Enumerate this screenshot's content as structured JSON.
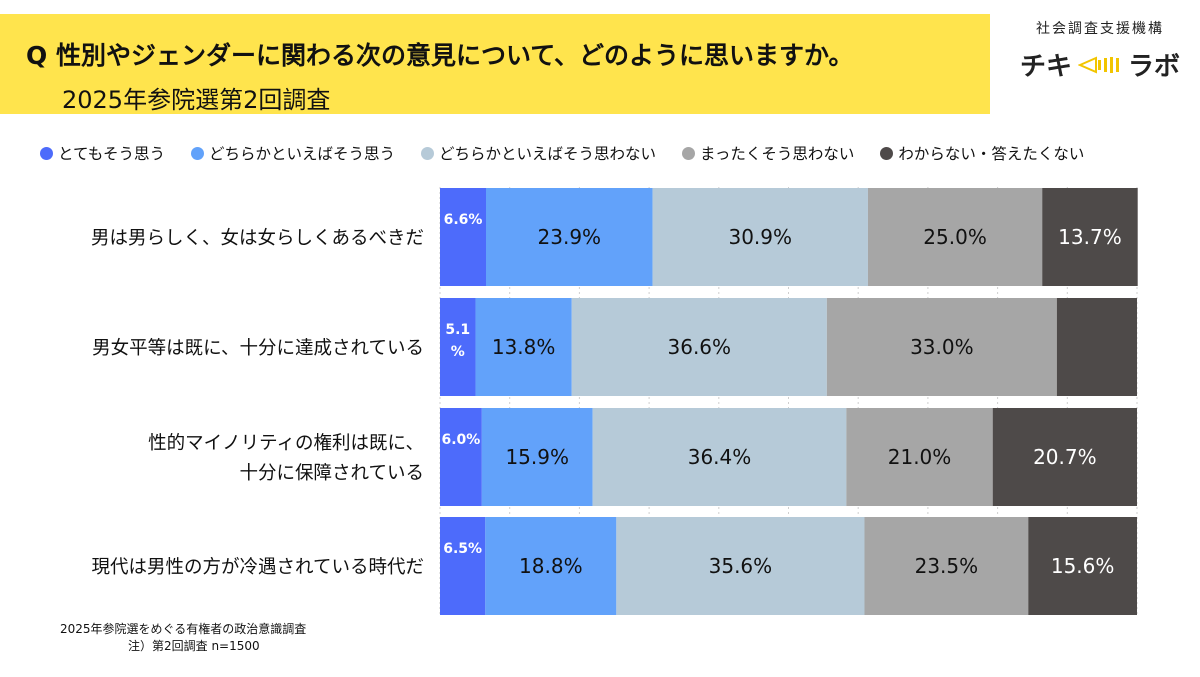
{
  "header": {
    "title": "Q 性別やジェンダーに関わる次の意見について、どのように思いますか。",
    "subtitle": "2025年参院選第2回調査"
  },
  "logo": {
    "org": "社会調査支援機構",
    "name_left": "チキ",
    "name_right": "ラボ",
    "icon": "megaphone-icon"
  },
  "colors": {
    "strongly_agree": "#4d6bfb",
    "somewhat_agree": "#62a2fa",
    "somewhat_disagree": "#b6cad8",
    "strongly_disagree": "#a6a6a6",
    "dont_know": "#4e4a49",
    "header_bg": "#ffe44d"
  },
  "chart_data": {
    "type": "bar",
    "orientation": "horizontal",
    "stacked": true,
    "xlim": [
      0,
      100
    ],
    "grid": true,
    "legend_position": "top",
    "categories": [
      "男は男らしく、女は女らしくあるべきだ",
      "男女平等は既に、十分に達成されている",
      "性的マイノリティの権利は既に、\n十分に保障されている",
      "現代は男性の方が冷遇されている時代だ"
    ],
    "series": [
      {
        "name": "とてもそう思う",
        "values": [
          6.6,
          5.1,
          6.0,
          6.5
        ],
        "labels": [
          "6.6%",
          "5.1\n%",
          "6.0%",
          "6.5%"
        ]
      },
      {
        "name": "どちらかといえばそう思う",
        "values": [
          23.9,
          13.8,
          15.9,
          18.8
        ],
        "labels": [
          "23.9%",
          "13.8%",
          "15.9%",
          "18.8%"
        ]
      },
      {
        "name": "どちらかといえばそう思わない",
        "values": [
          30.9,
          36.6,
          36.4,
          35.6
        ],
        "labels": [
          "30.9%",
          "36.6%",
          "36.4%",
          "35.6%"
        ]
      },
      {
        "name": "まったくそう思わない",
        "values": [
          25.0,
          33.0,
          21.0,
          23.5
        ],
        "labels": [
          "25.0%",
          "33.0%",
          "21.0%",
          "23.5%"
        ]
      },
      {
        "name": "わからない・答えたくない",
        "values": [
          13.7,
          11.5,
          20.7,
          15.6
        ],
        "labels": [
          "13.7%",
          "",
          "20.7%",
          "15.6%"
        ]
      }
    ]
  },
  "source": {
    "line1": "2025年参院選をめぐる有権者の政治意識調査",
    "line2": "注）第2回調査 n=1500"
  }
}
